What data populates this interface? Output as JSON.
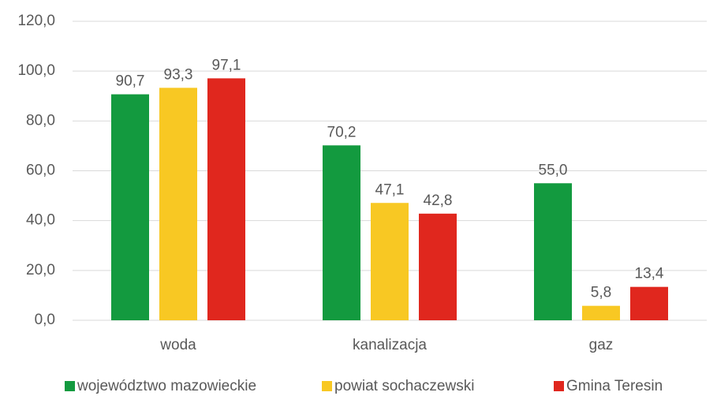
{
  "chart_data": {
    "type": "bar",
    "categories": [
      "woda",
      "kanalizacja",
      "gaz"
    ],
    "series": [
      {
        "name": "województwo mazowieckie",
        "color": "#139a3f",
        "values": [
          90.7,
          70.2,
          55.0
        ],
        "value_labels": [
          "90,7",
          "70,2",
          "55,0"
        ]
      },
      {
        "name": "powiat sochaczewski",
        "color": "#f8c823",
        "values": [
          93.3,
          47.1,
          5.8
        ],
        "value_labels": [
          "93,3",
          "47,1",
          "5,8"
        ]
      },
      {
        "name": "Gmina Teresin",
        "color": "#e0271e",
        "values": [
          97.1,
          42.8,
          13.4
        ],
        "value_labels": [
          "97,1",
          "42,8",
          "13,4"
        ]
      }
    ],
    "ylim": [
      0,
      120
    ],
    "yticks": [
      {
        "value": 0,
        "label": "0,0"
      },
      {
        "value": 20,
        "label": "20,0"
      },
      {
        "value": 40,
        "label": "40,0"
      },
      {
        "value": 60,
        "label": "60,0"
      },
      {
        "value": 80,
        "label": "80,0"
      },
      {
        "value": 100,
        "label": "100,0"
      },
      {
        "value": 120,
        "label": "120,0"
      }
    ],
    "grid": true,
    "legend": "bottom"
  }
}
